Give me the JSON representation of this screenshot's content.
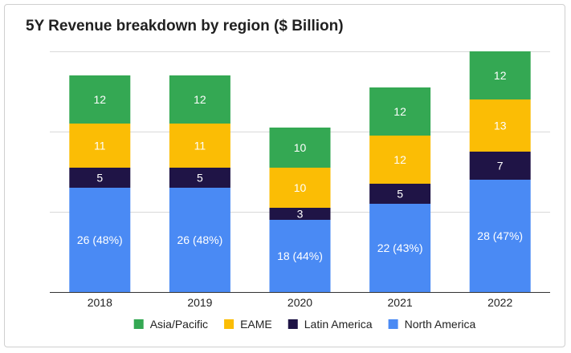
{
  "chart_data": {
    "type": "bar",
    "stacked": true,
    "title": "5Y Revenue breakdown by region ($ Billion)",
    "xlabel": "",
    "ylabel": "",
    "categories": [
      "2018",
      "2019",
      "2020",
      "2021",
      "2022"
    ],
    "ylim": [
      0,
      60
    ],
    "gridlines": [
      0,
      20,
      40,
      60
    ],
    "legend_position": "bottom",
    "series": [
      {
        "name": "North America",
        "color": "#4a8af4",
        "values": [
          26,
          26,
          18,
          22,
          28
        ],
        "labels": [
          "26 (48%)",
          "26 (48%)",
          "18 (44%)",
          "22 (43%)",
          "28 (47%)"
        ]
      },
      {
        "name": "Latin America",
        "color": "#1f1446",
        "values": [
          5,
          5,
          3,
          5,
          7
        ],
        "labels": [
          "5",
          "5",
          "3",
          "5",
          "7"
        ]
      },
      {
        "name": "EAME",
        "color": "#fbbd05",
        "values": [
          11,
          11,
          10,
          12,
          13
        ],
        "labels": [
          "11",
          "11",
          "10",
          "12",
          "13"
        ]
      },
      {
        "name": "Asia/Pacific",
        "color": "#34a853",
        "values": [
          12,
          12,
          10,
          12,
          12
        ],
        "labels": [
          "12",
          "12",
          "10",
          "12",
          "12"
        ]
      }
    ],
    "legend_order": [
      "Asia/Pacific",
      "EAME",
      "Latin America",
      "North America"
    ]
  }
}
